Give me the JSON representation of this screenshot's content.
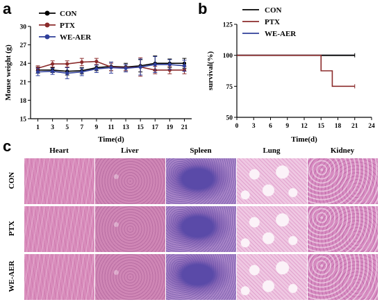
{
  "panels": {
    "a": "a",
    "b": "b",
    "c": "c"
  },
  "chart_data": [
    {
      "type": "line",
      "ylabel": "Mouse weight (g)",
      "xlabel": "Time(d)",
      "x": [
        1,
        3,
        5,
        7,
        9,
        11,
        13,
        15,
        17,
        19,
        21
      ],
      "xticks": [
        "1",
        "3",
        "5",
        "7",
        "9",
        "11",
        "13",
        "15",
        "17",
        "19",
        "21"
      ],
      "yticks": [
        "15",
        "18",
        "21",
        "24",
        "27",
        "30"
      ],
      "ylim": [
        15,
        30
      ],
      "legend_position": "top-left",
      "series": [
        {
          "name": "CON",
          "color": "#000000",
          "values": [
            22.9,
            22.9,
            22.7,
            22.8,
            23.3,
            23.5,
            23.4,
            23.6,
            24.0,
            24.0,
            24.0
          ],
          "err": [
            0.5,
            0.4,
            0.6,
            0.5,
            0.5,
            0.7,
            0.6,
            1.0,
            1.2,
            0.7,
            0.8
          ]
        },
        {
          "name": "PTX",
          "color": "#8b2b2b",
          "values": [
            23.2,
            23.9,
            23.9,
            24.2,
            24.3,
            23.4,
            23.3,
            23.4,
            22.9,
            22.9,
            22.9
          ],
          "err": [
            0.4,
            0.5,
            0.5,
            0.6,
            0.5,
            0.6,
            0.5,
            1.5,
            0.6,
            0.6,
            0.6
          ]
        },
        {
          "name": "WE-AER",
          "color": "#2f3f9a",
          "values": [
            22.6,
            22.7,
            22.4,
            22.6,
            23.1,
            23.3,
            23.2,
            23.4,
            23.8,
            23.8,
            23.6
          ],
          "err": [
            0.6,
            0.5,
            0.9,
            0.6,
            0.6,
            0.9,
            0.6,
            1.3,
            1.3,
            0.8,
            0.9
          ]
        }
      ]
    },
    {
      "type": "line",
      "subtype": "step",
      "ylabel": "survival(%)",
      "xlabel": "Time(d)",
      "xticks": [
        "0",
        "3",
        "6",
        "9",
        "12",
        "15",
        "18",
        "21",
        "24"
      ],
      "yticks": [
        "50",
        "75",
        "100",
        "125"
      ],
      "xlim": [
        0,
        24
      ],
      "ylim": [
        50,
        125
      ],
      "legend_position": "top-left",
      "series": [
        {
          "name": "CON",
          "color": "#000000",
          "steps": [
            [
              0,
              100
            ],
            [
              21,
              100
            ]
          ]
        },
        {
          "name": "PTX",
          "color": "#8b2b2b",
          "steps": [
            [
              0,
              100
            ],
            [
              15,
              100
            ],
            [
              15,
              87.5
            ],
            [
              17,
              87.5
            ],
            [
              17,
              75
            ],
            [
              21,
              75
            ]
          ]
        },
        {
          "name": "WE-AER",
          "color": "#2f3f9a",
          "steps": [
            [
              0,
              100
            ],
            [
              21,
              100
            ]
          ]
        }
      ]
    }
  ],
  "histology": {
    "columns": [
      "Heart",
      "Liver",
      "Spleen",
      "Lung",
      "Kidney"
    ],
    "rows": [
      "CON",
      "PTX",
      "WE-AER"
    ]
  }
}
